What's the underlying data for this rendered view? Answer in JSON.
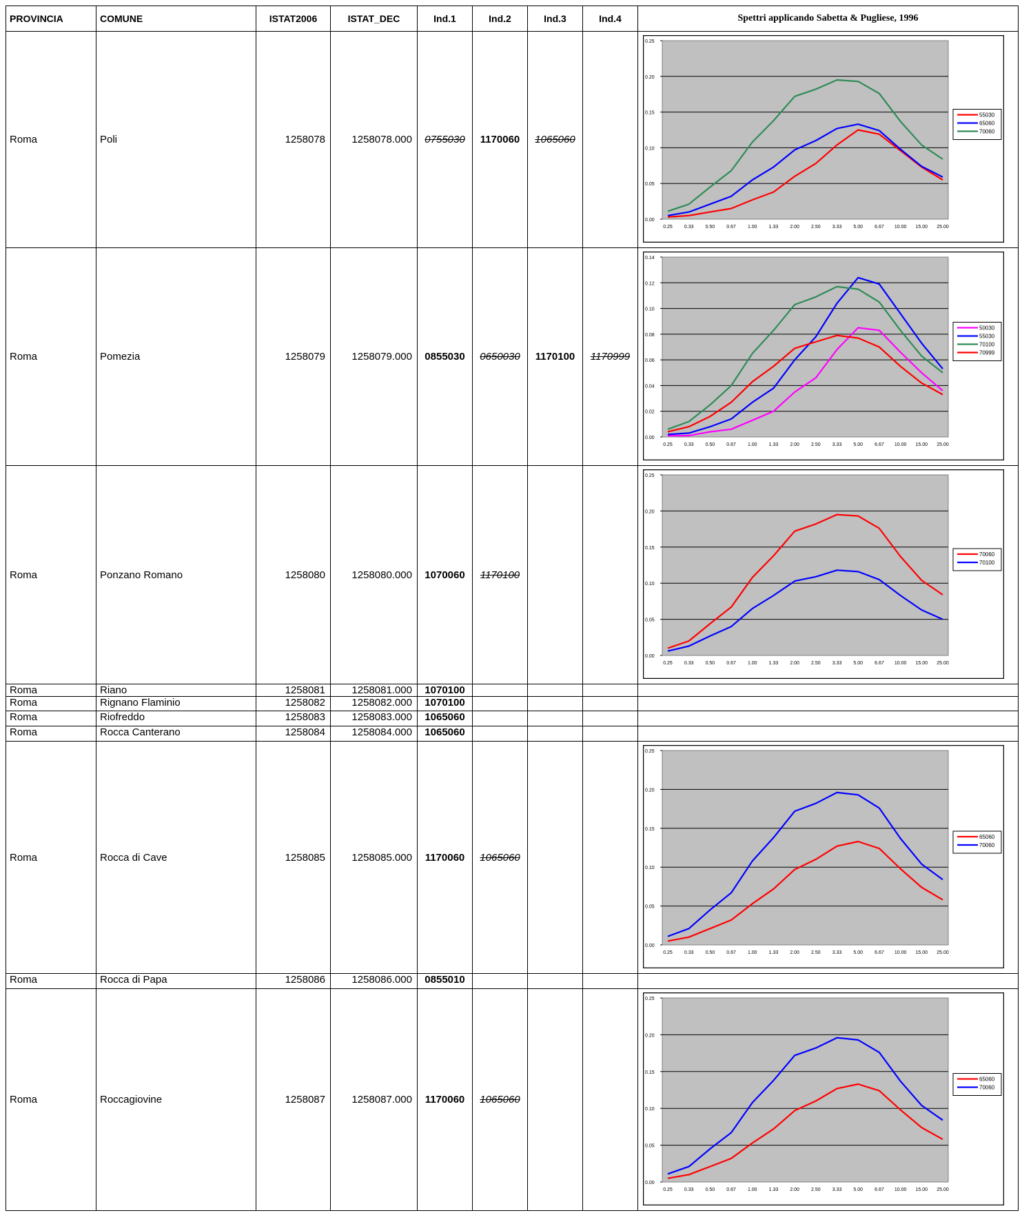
{
  "headers": {
    "provincia": "PROVINCIA",
    "comune": "COMUNE",
    "istat2006": "ISTAT2006",
    "istat_dec": "ISTAT_DEC",
    "ind1": "Ind.1",
    "ind2": "Ind.2",
    "ind3": "Ind.3",
    "ind4": "Ind.4",
    "spettri": "Spettri applicando Sabetta & Pugliese, 1996"
  },
  "rows": [
    {
      "provincia": "Roma",
      "comune": "Poli",
      "istat2006": "1258078",
      "istat_dec": "1258078.000",
      "ind1": "0755030",
      "ind2": "1170060",
      "ind3": "1065060",
      "ind4": ""
    },
    {
      "provincia": "Roma",
      "comune": "Pomezia",
      "istat2006": "1258079",
      "istat_dec": "1258079.000",
      "ind1": "0855030",
      "ind2": "0650030",
      "ind3": "1170100",
      "ind4": "1170999"
    },
    {
      "provincia": "Roma",
      "comune": "Ponzano Romano",
      "istat2006": "1258080",
      "istat_dec": "1258080.000",
      "ind1": "1070060",
      "ind2": "1170100",
      "ind3": "",
      "ind4": ""
    },
    {
      "provincia": "Roma",
      "comune": "Riano",
      "istat2006": "1258081",
      "istat_dec": "1258081.000",
      "ind1": "1070100",
      "ind2": "",
      "ind3": "",
      "ind4": ""
    },
    {
      "provincia": "Roma",
      "comune": "Rignano Flaminio",
      "istat2006": "1258082",
      "istat_dec": "1258082.000",
      "ind1": "1070100",
      "ind2": "",
      "ind3": "",
      "ind4": ""
    },
    {
      "provincia": "Roma",
      "comune": "Riofreddo",
      "istat2006": "1258083",
      "istat_dec": "1258083.000",
      "ind1": "1065060",
      "ind2": "",
      "ind3": "",
      "ind4": ""
    },
    {
      "provincia": "Roma",
      "comune": "Rocca Canterano",
      "istat2006": "1258084",
      "istat_dec": "1258084.000",
      "ind1": "1065060",
      "ind2": "",
      "ind3": "",
      "ind4": ""
    },
    {
      "provincia": "Roma",
      "comune": "Rocca di Cave",
      "istat2006": "1258085",
      "istat_dec": "1258085.000",
      "ind1": "1170060",
      "ind2": "1065060",
      "ind3": "",
      "ind4": ""
    },
    {
      "provincia": "Roma",
      "comune": "Rocca di Papa",
      "istat2006": "1258086",
      "istat_dec": "1258086.000",
      "ind1": "0855010",
      "ind2": "",
      "ind3": "",
      "ind4": ""
    },
    {
      "provincia": "Roma",
      "comune": "Roccagiovine",
      "istat2006": "1258087",
      "istat_dec": "1258087.000",
      "ind1": "1170060",
      "ind2": "1065060",
      "ind3": "",
      "ind4": ""
    }
  ],
  "chart_data": [
    {
      "type": "line",
      "comune": "Poli",
      "categories": [
        "0.25",
        "0.33",
        "0.50",
        "0.67",
        "1.00",
        "1.33",
        "2.00",
        "2.50",
        "3.33",
        "5.00",
        "6.67",
        "10.00",
        "15.00",
        "25.00"
      ],
      "ylim": [
        0,
        0.25
      ],
      "yticks": [
        "0.00",
        "0.05",
        "0.10",
        "0.15",
        "0.20",
        "0.25"
      ],
      "grid": true,
      "legend": "right",
      "series": [
        {
          "name": "55030",
          "color": "#ff0000",
          "values": [
            0.003,
            0.005,
            0.01,
            0.015,
            0.027,
            0.038,
            0.06,
            0.078,
            0.104,
            0.125,
            0.119,
            0.096,
            0.073,
            0.055
          ]
        },
        {
          "name": "65060",
          "color": "#0000ff",
          "values": [
            0.005,
            0.01,
            0.021,
            0.032,
            0.055,
            0.073,
            0.097,
            0.11,
            0.127,
            0.133,
            0.124,
            0.098,
            0.074,
            0.059
          ]
        },
        {
          "name": "70060",
          "color": "#2e8b57",
          "values": [
            0.011,
            0.021,
            0.045,
            0.068,
            0.108,
            0.138,
            0.172,
            0.182,
            0.195,
            0.193,
            0.176,
            0.137,
            0.104,
            0.084
          ]
        }
      ]
    },
    {
      "type": "line",
      "comune": "Pomezia",
      "categories": [
        "0.25",
        "0.33",
        "0.50",
        "0.67",
        "1.00",
        "1.33",
        "2.00",
        "2.50",
        "3.33",
        "5.00",
        "6.67",
        "10.00",
        "15.00",
        "25.00"
      ],
      "ylim": [
        0,
        0.14
      ],
      "yticks": [
        "0.00",
        "0.02",
        "0.04",
        "0.06",
        "0.08",
        "0.10",
        "0.12",
        "0.14"
      ],
      "grid": true,
      "legend": "right",
      "series": [
        {
          "name": "50030",
          "color": "#ff00ff",
          "values": [
            0.001,
            0.001,
            0.004,
            0.006,
            0.013,
            0.02,
            0.035,
            0.046,
            0.068,
            0.085,
            0.083,
            0.066,
            0.05,
            0.036
          ]
        },
        {
          "name": "55030",
          "color": "#0000ff",
          "values": [
            0.002,
            0.003,
            0.008,
            0.014,
            0.027,
            0.038,
            0.06,
            0.078,
            0.104,
            0.124,
            0.119,
            0.096,
            0.073,
            0.053
          ]
        },
        {
          "name": "70100",
          "color": "#2e8b57",
          "values": [
            0.006,
            0.012,
            0.025,
            0.04,
            0.065,
            0.083,
            0.103,
            0.109,
            0.117,
            0.115,
            0.105,
            0.083,
            0.063,
            0.05
          ]
        },
        {
          "name": "70999",
          "color": "#ff0000",
          "values": [
            0.004,
            0.008,
            0.016,
            0.027,
            0.043,
            0.055,
            0.069,
            0.074,
            0.079,
            0.077,
            0.07,
            0.055,
            0.042,
            0.033
          ]
        }
      ]
    },
    {
      "type": "line",
      "comune": "Ponzano Romano",
      "categories": [
        "0.25",
        "0.33",
        "0.50",
        "0.67",
        "1.00",
        "1.33",
        "2.00",
        "2.50",
        "3.33",
        "5.00",
        "6.67",
        "10.00",
        "15.00",
        "25.00"
      ],
      "ylim": [
        0,
        0.25
      ],
      "yticks": [
        "0.00",
        "0.05",
        "0.10",
        "0.15",
        "0.20",
        "0.25"
      ],
      "grid": true,
      "legend": "right",
      "series": [
        {
          "name": "70060",
          "color": "#ff0000",
          "values": [
            0.01,
            0.02,
            0.044,
            0.067,
            0.108,
            0.138,
            0.172,
            0.182,
            0.195,
            0.193,
            0.176,
            0.137,
            0.104,
            0.084
          ]
        },
        {
          "name": "70100",
          "color": "#0000ff",
          "values": [
            0.006,
            0.013,
            0.027,
            0.04,
            0.065,
            0.083,
            0.103,
            0.109,
            0.118,
            0.116,
            0.105,
            0.083,
            0.063,
            0.05
          ]
        }
      ]
    },
    {
      "type": "line",
      "comune": "Rocca di Cave",
      "categories": [
        "0.25",
        "0.33",
        "0.50",
        "0.67",
        "1.00",
        "1.33",
        "2.00",
        "2.50",
        "3.33",
        "5.00",
        "6.67",
        "10.00",
        "15.00",
        "25.00"
      ],
      "ylim": [
        0,
        0.25
      ],
      "yticks": [
        "0.00",
        "0.05",
        "0.10",
        "0.15",
        "0.20",
        "0.25"
      ],
      "grid": true,
      "legend": "right",
      "series": [
        {
          "name": "65060",
          "color": "#ff0000",
          "values": [
            0.005,
            0.01,
            0.021,
            0.032,
            0.053,
            0.072,
            0.097,
            0.11,
            0.127,
            0.133,
            0.124,
            0.098,
            0.074,
            0.058
          ]
        },
        {
          "name": "70060",
          "color": "#0000ff",
          "values": [
            0.011,
            0.021,
            0.045,
            0.067,
            0.108,
            0.138,
            0.172,
            0.182,
            0.196,
            0.193,
            0.176,
            0.137,
            0.104,
            0.084
          ]
        }
      ]
    },
    {
      "type": "line",
      "comune": "Roccagiovine",
      "categories": [
        "0.25",
        "0.33",
        "0.50",
        "0.67",
        "1.00",
        "1.33",
        "2.00",
        "2.50",
        "3.33",
        "5.00",
        "6.67",
        "10.00",
        "15.00",
        "25.00"
      ],
      "ylim": [
        0,
        0.25
      ],
      "yticks": [
        "0.00",
        "0.05",
        "0.10",
        "0.15",
        "0.20",
        "0.25"
      ],
      "grid": true,
      "legend": "right",
      "series": [
        {
          "name": "65060",
          "color": "#ff0000",
          "values": [
            0.005,
            0.01,
            0.021,
            0.032,
            0.053,
            0.072,
            0.097,
            0.11,
            0.127,
            0.133,
            0.124,
            0.098,
            0.074,
            0.058
          ]
        },
        {
          "name": "70060",
          "color": "#0000ff",
          "values": [
            0.011,
            0.021,
            0.045,
            0.067,
            0.108,
            0.138,
            0.172,
            0.182,
            0.196,
            0.193,
            0.176,
            0.137,
            0.104,
            0.084
          ]
        }
      ]
    }
  ]
}
